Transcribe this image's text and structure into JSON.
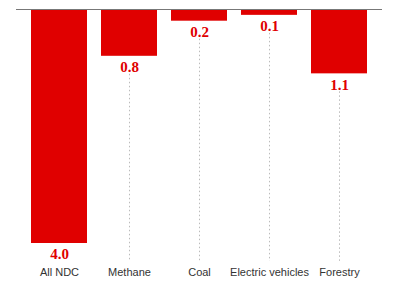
{
  "chart_data": {
    "type": "bar",
    "categories": [
      "All NDC",
      "Methane",
      "Coal",
      "Electric vehicles",
      "Forestry"
    ],
    "values": [
      4.0,
      0.8,
      0.2,
      0.1,
      1.1
    ],
    "value_labels": [
      "4.0",
      "0.8",
      "0.2",
      "0.1",
      "1.1"
    ],
    "color": "#e00000",
    "ylim": [
      0,
      4.0
    ],
    "data_labels": true,
    "tick_labels": "x",
    "grid": false
  }
}
